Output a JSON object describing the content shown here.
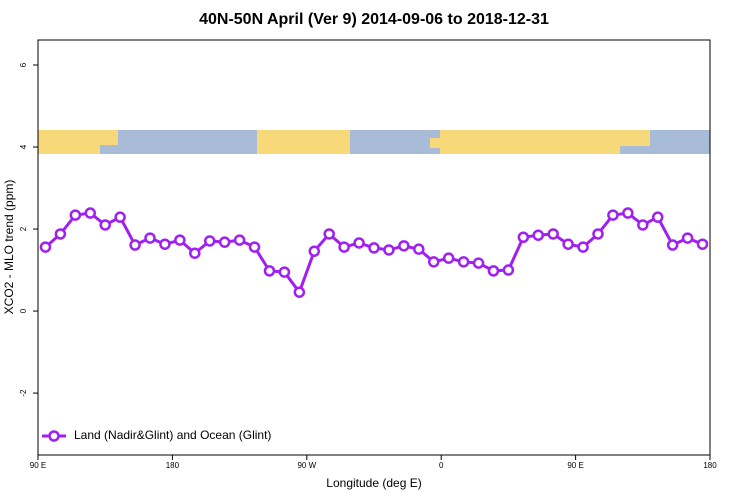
{
  "chart_data": {
    "type": "line",
    "title": "40N-50N April (Ver 9)   2014-09-06 to 2018-12-31",
    "xlabel": "Longitude (deg E)",
    "ylabel": "XCO2 - MLO trend (ppm)",
    "x": [
      95,
      105,
      115,
      125,
      135,
      145,
      155,
      165,
      175,
      185,
      195,
      205,
      215,
      225,
      235,
      245,
      255,
      265,
      275,
      285,
      295,
      305,
      315,
      325,
      335,
      345,
      355,
      365,
      375,
      385,
      395,
      405,
      415,
      425,
      435,
      445,
      455,
      465,
      475,
      485,
      495,
      505,
      515,
      525,
      535
    ],
    "series": [
      {
        "name": "Land (Nadir&Glint) and Ocean (Glint)",
        "color": "#a020f0",
        "values": [
          1.56,
          1.88,
          2.34,
          2.39,
          2.1,
          2.29,
          1.61,
          1.78,
          1.63,
          1.73,
          1.41,
          1.71,
          1.68,
          1.73,
          1.56,
          0.98,
          0.95,
          0.46,
          1.46,
          1.88,
          1.56,
          1.66,
          1.54,
          1.49,
          1.59,
          1.51,
          1.2,
          1.29,
          1.2,
          1.17,
          0.98,
          1.0,
          1.8,
          1.85,
          1.88,
          1.63,
          1.56,
          1.88,
          2.34,
          2.39,
          2.1,
          2.29,
          1.61,
          1.78,
          1.63
        ]
      }
    ],
    "xlim": [
      90,
      540
    ],
    "xticks": [
      {
        "value": 90,
        "label": "90 E"
      },
      180,
      {
        "value": 270,
        "label": "90 W"
      },
      {
        "value": 360,
        "label": "0"
      },
      {
        "value": 450,
        "label": "90 E"
      },
      {
        "value": 540,
        "label": "180"
      }
    ],
    "ylim": [
      -3.51,
      6.61
    ],
    "yticks": [
      -2,
      0,
      2,
      4,
      6
    ],
    "legend": "bottom-left"
  }
}
